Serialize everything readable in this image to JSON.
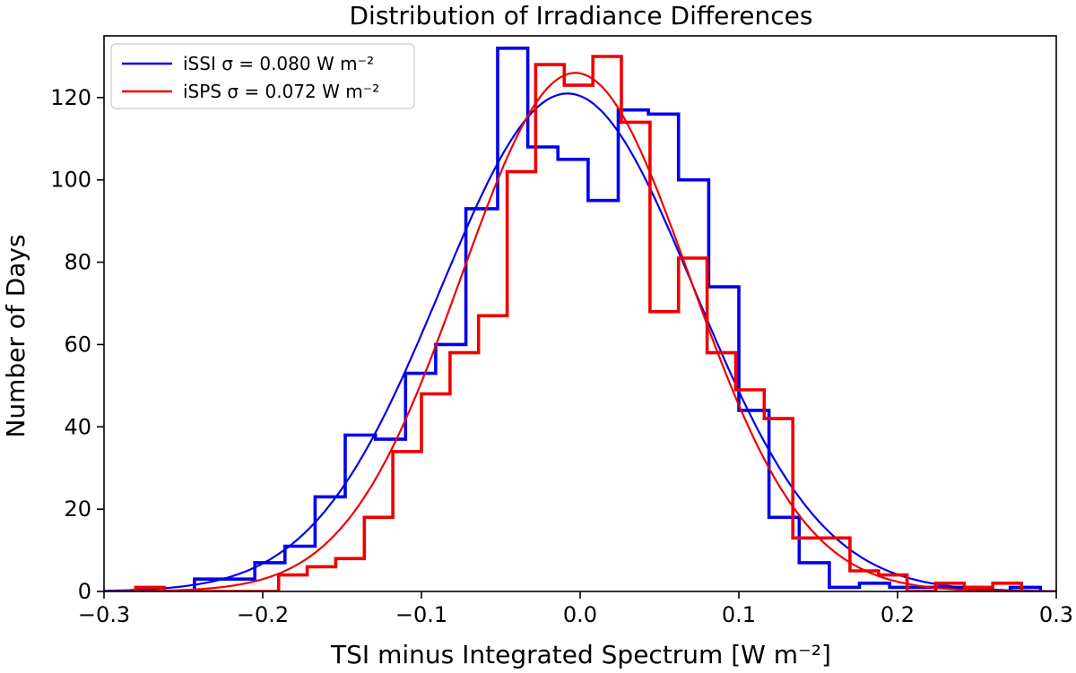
{
  "chart_data": {
    "type": "histogram",
    "title": "Distribution of Irradiance Differences",
    "xlabel": "TSI minus Integrated Spectrum [W m⁻²]",
    "ylabel": "Number of Days",
    "xlim": [
      -0.3,
      0.3
    ],
    "ylim": [
      0,
      135
    ],
    "xticks": [
      -0.3,
      -0.2,
      -0.1,
      0.0,
      0.1,
      0.2,
      0.3
    ],
    "xtick_labels": [
      "−0.3",
      "−0.2",
      "−0.1",
      "0.0",
      "0.1",
      "0.2",
      "0.3"
    ],
    "yticks": [
      0,
      20,
      40,
      60,
      80,
      100,
      120
    ],
    "ytick_labels": [
      "0",
      "20",
      "40",
      "60",
      "80",
      "100",
      "120"
    ],
    "legend_position": "top-left",
    "series": [
      {
        "name": "iSSI",
        "legend_label": "iSSI σ = 0.080 W m⁻²",
        "color": "#0000ee",
        "sigma": 0.08,
        "fit_mean": -0.008,
        "fit_peak": 121,
        "bin_edges": [
          -0.3,
          -0.281,
          -0.262,
          -0.243,
          -0.224,
          -0.205,
          -0.186,
          -0.167,
          -0.148,
          -0.129,
          -0.11,
          -0.091,
          -0.072,
          -0.052,
          -0.033,
          -0.014,
          0.005,
          0.024,
          0.043,
          0.062,
          0.081,
          0.1,
          0.119,
          0.138,
          0.157,
          0.176,
          0.195,
          0.214,
          0.233,
          0.252,
          0.271,
          0.29
        ],
        "counts": [
          0,
          0,
          0,
          3,
          3,
          7,
          11,
          23,
          38,
          37,
          53,
          60,
          93,
          132,
          108,
          105,
          95,
          117,
          116,
          100,
          74,
          44,
          18,
          7,
          1,
          2,
          1,
          1,
          1,
          0,
          1
        ]
      },
      {
        "name": "iSPS",
        "legend_label": "iSPS σ = 0.072 W m⁻²",
        "color": "#ee0000",
        "sigma": 0.072,
        "fit_mean": -0.003,
        "fit_peak": 126,
        "bin_edges": [
          -0.28,
          -0.262,
          -0.244,
          -0.226,
          -0.208,
          -0.19,
          -0.172,
          -0.154,
          -0.136,
          -0.118,
          -0.1,
          -0.082,
          -0.064,
          -0.046,
          -0.028,
          -0.01,
          0.008,
          0.026,
          0.044,
          0.062,
          0.08,
          0.098,
          0.116,
          0.134,
          0.152,
          0.17,
          0.188,
          0.206,
          0.224,
          0.242,
          0.26,
          0.278
        ],
        "counts": [
          1,
          0,
          0,
          0,
          0,
          4,
          6,
          8,
          18,
          34,
          48,
          58,
          67,
          102,
          128,
          123,
          130,
          114,
          68,
          81,
          58,
          49,
          42,
          13,
          13,
          5,
          4,
          0,
          2,
          1,
          2
        ]
      }
    ]
  }
}
